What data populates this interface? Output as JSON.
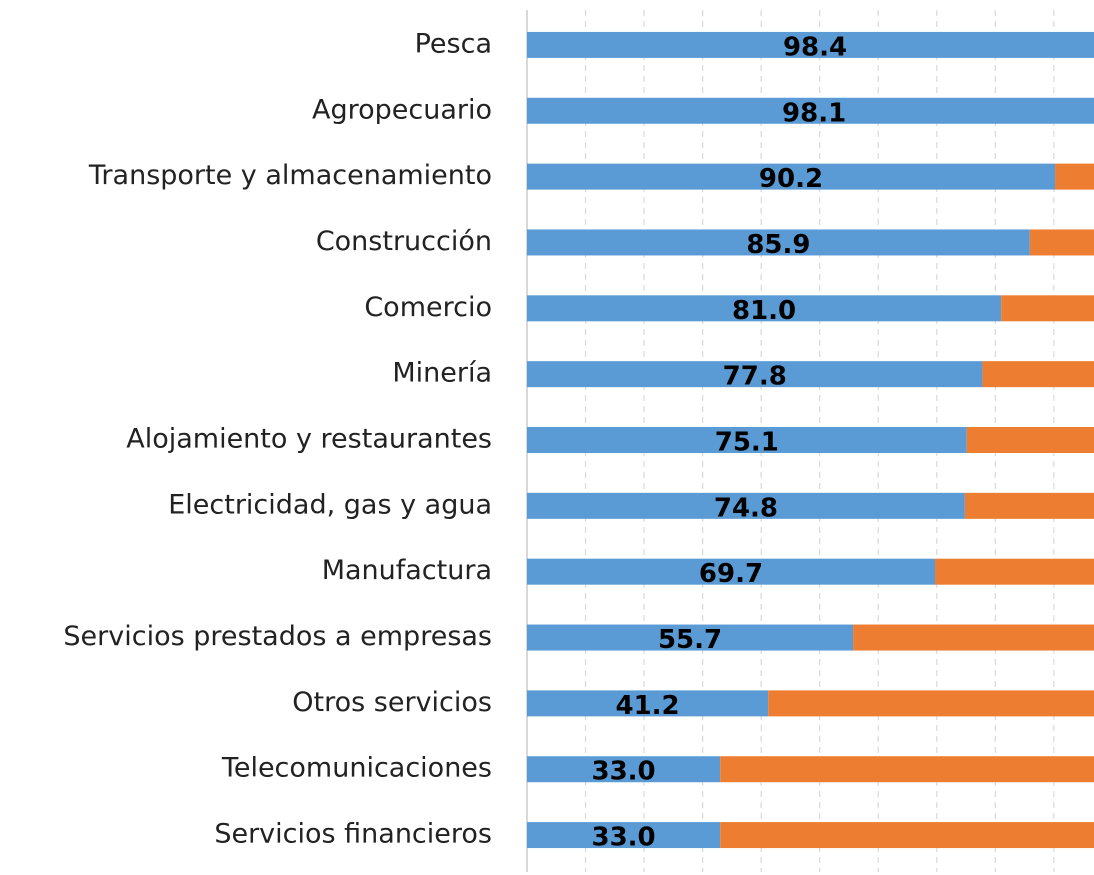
{
  "chart_data": {
    "type": "stacked_barh",
    "categories": [
      "Pesca",
      "Agropecuario",
      "Transporte y almacenamiento",
      "Construcción",
      "Comercio",
      "Minería",
      "Alojamiento y restaurantes",
      "Electricidad, gas y agua",
      "Manufactura",
      "Servicios prestados a empresas",
      "Otros servicios",
      "Telecomunicaciones",
      "Servicios financieros"
    ],
    "series": [
      {
        "color": "#5b9bd5",
        "values": [
          98.4,
          98.1,
          90.2,
          85.9,
          81.0,
          77.8,
          75.1,
          74.8,
          69.7,
          55.7,
          41.2,
          33.0,
          33.0
        ],
        "value_labels": [
          "98.4",
          "98.1",
          "90.2",
          "85.9",
          "81.0",
          "77.8",
          "75.1",
          "74.8",
          "69.7",
          "55.7",
          "41.2",
          "33.0",
          "33.0"
        ]
      },
      {
        "color": "#ed7d31",
        "values": [
          1.6,
          1.9,
          9.8,
          14.1,
          19.0,
          22.2,
          24.9,
          25.2,
          30.3,
          44.3,
          58.8,
          67.0,
          67.0
        ]
      }
    ],
    "xlim": [
      0,
      100
    ],
    "xticks": [
      0,
      10,
      20,
      30,
      40,
      50,
      60,
      70,
      80,
      90,
      100
    ],
    "grid": true
  }
}
